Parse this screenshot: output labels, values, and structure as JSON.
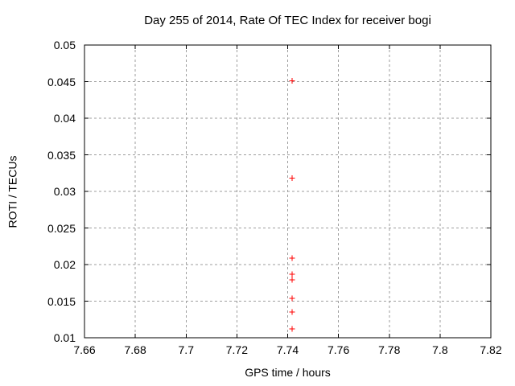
{
  "chart_data": {
    "type": "scatter",
    "title": "Day 255 of 2014, Rate Of TEC Index for receiver bogi",
    "xlabel": "GPS time / hours",
    "ylabel": "ROTI / TECUs",
    "xlim": [
      7.66,
      7.82
    ],
    "ylim": [
      0.01,
      0.05
    ],
    "xticks": [
      7.66,
      7.68,
      7.7,
      7.72,
      7.74,
      7.76,
      7.78,
      7.8,
      7.82
    ],
    "xtick_labels": [
      "7.66",
      "7.68",
      "7.7",
      "7.72",
      "7.74",
      "7.76",
      "7.78",
      "7.8",
      "7.82"
    ],
    "yticks": [
      0.01,
      0.015,
      0.02,
      0.025,
      0.03,
      0.035,
      0.04,
      0.045,
      0.05
    ],
    "ytick_labels": [
      "0.01",
      "0.015",
      "0.02",
      "0.025",
      "0.03",
      "0.035",
      "0.04",
      "0.045",
      "0.05"
    ],
    "grid": true,
    "legend": null,
    "colors": {
      "marker": "#ff0000",
      "grid": "#9e9e9e",
      "border": "#000000",
      "text": "#000000",
      "background": "#ffffff"
    },
    "series": [
      {
        "marker": "plus",
        "color": "#ff0000",
        "points": [
          [
            7.7417,
            0.0451
          ],
          [
            7.7417,
            0.0318
          ],
          [
            7.7417,
            0.0209
          ],
          [
            7.7417,
            0.0187
          ],
          [
            7.7417,
            0.0179
          ],
          [
            7.7417,
            0.0154
          ],
          [
            7.7417,
            0.0135
          ],
          [
            7.7417,
            0.0112
          ]
        ]
      }
    ]
  }
}
